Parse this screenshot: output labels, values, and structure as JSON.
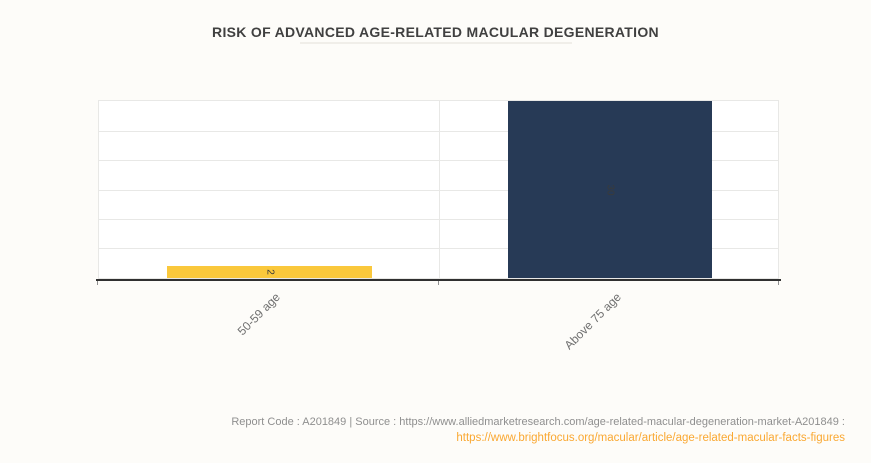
{
  "page": {
    "background": "#FDFCF9"
  },
  "header": {
    "title": "RISK OF ADVANCED AGE-RELATED MACULAR DEGENERATION"
  },
  "chart_data": {
    "type": "bar",
    "title": "RISK OF ADVANCED AGE-RELATED MACULAR DEGENERATION",
    "categories": [
      "50-59 age",
      "Above 75 age"
    ],
    "values": [
      2,
      30
    ],
    "bar_colors": [
      "#FAC83C",
      "#273A56"
    ],
    "ylim": [
      0,
      30
    ],
    "y_gridline_step": 5,
    "grid": true,
    "y_axis_tick_labels_visible": false,
    "legend_position": "none",
    "xlabel": "",
    "ylabel": "",
    "data_label_rotation": 90,
    "category_label_rotation": -45
  },
  "footer": {
    "meta_text": "Report Code : A201849   |   Source : https://www.alliedmarketresearch.com/age-related-macular-degeneration-market-A201849 :",
    "link_text": "https://www.brightfocus.org/macular/article/age-related-macular-facts-figures",
    "text_color": "#8F8F8F",
    "link_color": "#FAA832"
  },
  "colors": {
    "bar_yellow": "#FAC83C",
    "bar_navy": "#273A56",
    "gridline": "#E8E8E6",
    "axis": "#303030",
    "title_text": "#404040",
    "category_label": "#6F6F6F"
  }
}
